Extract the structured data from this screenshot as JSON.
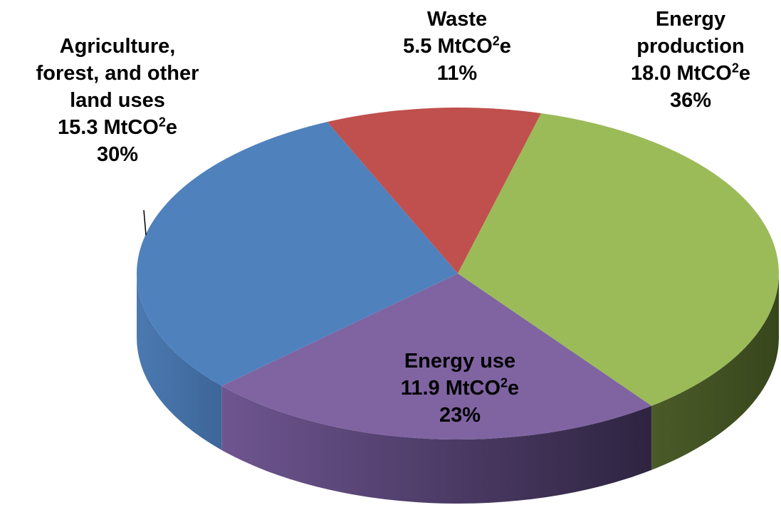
{
  "chart_data": {
    "type": "pie",
    "style": "3d",
    "title": "",
    "unit_main": "MtCO",
    "unit_sup": "2",
    "unit_tail": "e",
    "slices": [
      {
        "key": "waste",
        "label_lines": [
          "Waste"
        ],
        "value": 5.5,
        "value_text": "5.5",
        "percent": "11%",
        "color": "#c0504d",
        "side_color": "#8a3836"
      },
      {
        "key": "energy-production",
        "label_lines": [
          "Energy",
          "production"
        ],
        "value": 18.0,
        "value_text": "18.0",
        "percent": "36%",
        "color": "#9bbb59",
        "side_color": "#3f4d22"
      },
      {
        "key": "energy-use",
        "label_lines": [
          "Energy use"
        ],
        "value": 11.9,
        "value_text": "11.9",
        "percent": "23%",
        "color": "#8064a2",
        "side_color": "#4e3d66"
      },
      {
        "key": "agriculture",
        "label_lines": [
          "Agriculture,",
          "forest, and other",
          "land uses"
        ],
        "value": 15.3,
        "value_text": "15.3",
        "percent": "30%",
        "color": "#4f81bd",
        "side_color": "#3a6290"
      }
    ]
  }
}
